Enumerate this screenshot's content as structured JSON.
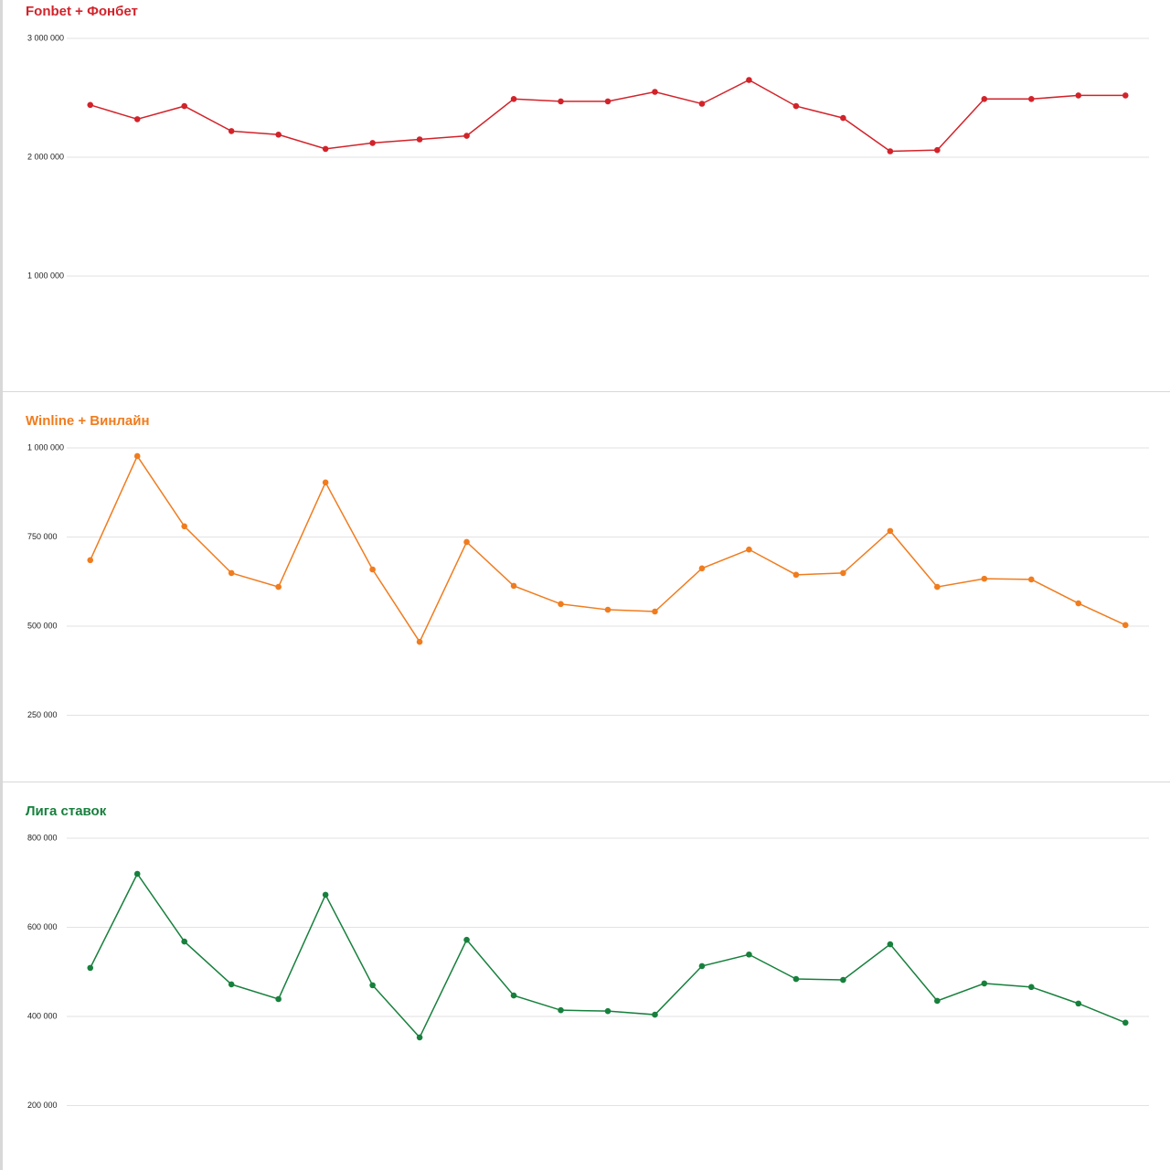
{
  "chart_data": [
    {
      "type": "line",
      "title": "Fonbet + Фонбет",
      "color": "#d2232a",
      "grid": true,
      "categories": [
        null,
        null,
        null,
        null,
        null,
        null,
        null,
        null,
        null,
        null,
        null,
        null,
        null,
        null,
        null,
        null,
        null,
        null,
        null,
        null,
        null,
        null,
        null
      ],
      "values": [
        2440000,
        2320000,
        2430000,
        2220000,
        2190000,
        2070000,
        2120000,
        2150000,
        2180000,
        2490000,
        2470000,
        2470000,
        2550000,
        2450000,
        2650000,
        2430000,
        2330000,
        2050000,
        2060000,
        2490000,
        2490000,
        2520000,
        2520000
      ],
      "ylim": [
        0,
        3000000
      ],
      "yticks": [
        {
          "value": 1000000,
          "label": "1 000 000"
        },
        {
          "value": 2000000,
          "label": "2 000 000"
        },
        {
          "value": 3000000,
          "label": "3 000 000"
        }
      ]
    },
    {
      "type": "line",
      "title": "Winline + Винлайн",
      "color": "#f07c1e",
      "grid": true,
      "categories": [
        null,
        null,
        null,
        null,
        null,
        null,
        null,
        null,
        null,
        null,
        null,
        null,
        null,
        null,
        null,
        null,
        null,
        null,
        null,
        null,
        null,
        null,
        null
      ],
      "values": [
        685000,
        977000,
        780000,
        649000,
        610000,
        903000,
        659000,
        456000,
        736000,
        613000,
        562000,
        546000,
        541000,
        662000,
        715000,
        644000,
        649000,
        767000,
        610000,
        633000,
        631000,
        564000,
        503000
      ],
      "ylim": [
        0,
        1000000
      ],
      "yticks": [
        {
          "value": 250000,
          "label": "250 000"
        },
        {
          "value": 500000,
          "label": "500 000"
        },
        {
          "value": 750000,
          "label": "750 000"
        },
        {
          "value": 1000000,
          "label": "1 000 000"
        }
      ]
    },
    {
      "type": "line",
      "title": "Лига ставок",
      "color": "#17803d",
      "grid": true,
      "categories": [
        null,
        null,
        null,
        null,
        null,
        null,
        null,
        null,
        null,
        null,
        null,
        null,
        null,
        null,
        null,
        null,
        null,
        null,
        null,
        null,
        null,
        null,
        null
      ],
      "values": [
        509000,
        720000,
        568000,
        472000,
        439000,
        673000,
        470000,
        353000,
        572000,
        447000,
        414000,
        412000,
        404000,
        513000,
        539000,
        484000,
        482000,
        562000,
        435000,
        474000,
        466000,
        429000,
        386000
      ],
      "ylim": [
        0,
        800000
      ],
      "yticks": [
        {
          "value": 200000,
          "label": "200 000"
        },
        {
          "value": 400000,
          "label": "400 000"
        },
        {
          "value": 600000,
          "label": "600 000"
        },
        {
          "value": 800000,
          "label": "800 000"
        }
      ]
    }
  ]
}
